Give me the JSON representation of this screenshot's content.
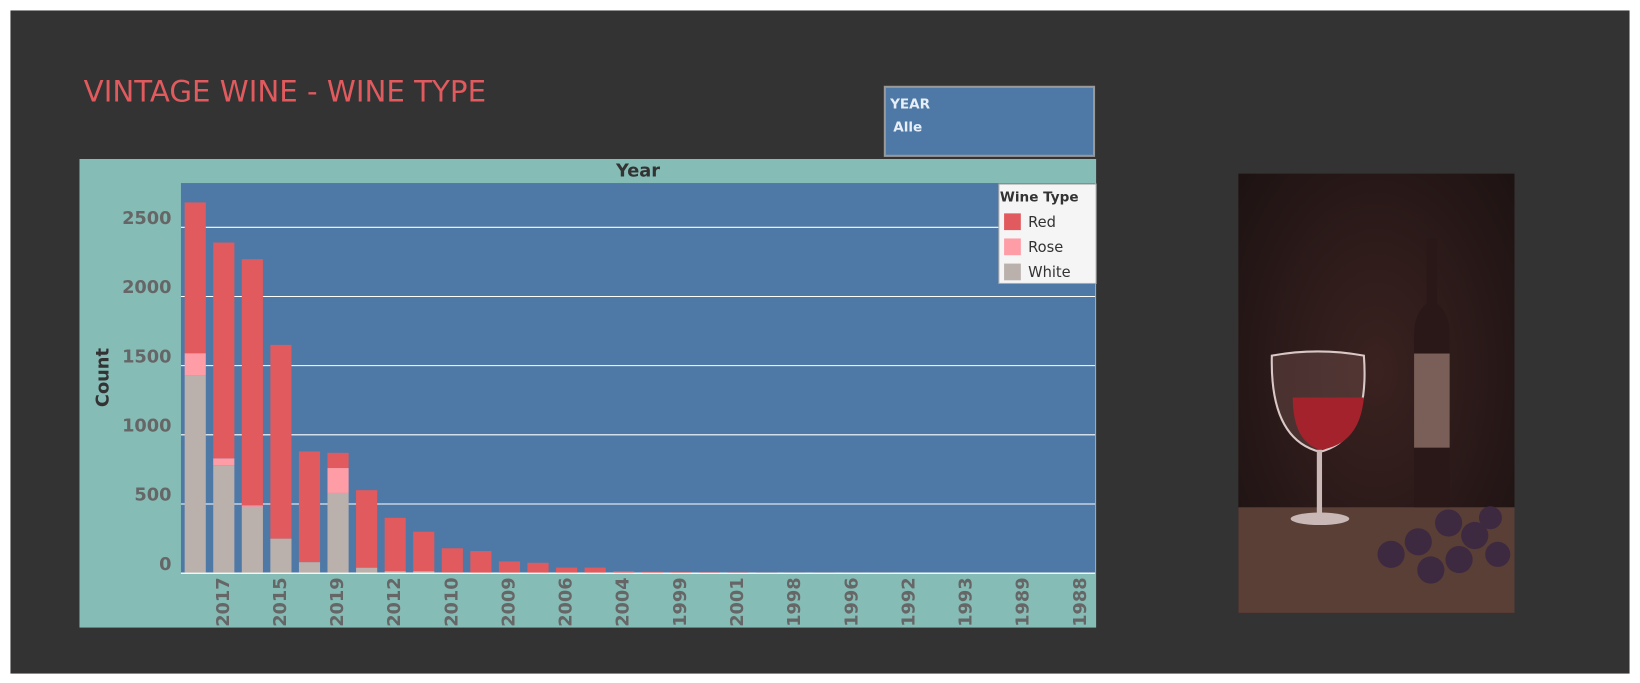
{
  "dashboard_title": "VINTAGE WINE - WINE TYPE",
  "filter": {
    "label": "YEAR",
    "value": "Alle"
  },
  "chart_data": {
    "type": "bar",
    "stacked": true,
    "x_label": "Year",
    "y_label": "Count",
    "categories": [
      null,
      "2017",
      null,
      "2015",
      null,
      "2019",
      null,
      "2012",
      null,
      "2010",
      null,
      "2009",
      null,
      "2006",
      null,
      "2004",
      null,
      "1999",
      null,
      "2001",
      null,
      "1998",
      null,
      "1996",
      null,
      "1992",
      null,
      "1993",
      null,
      "1989",
      null,
      "1988"
    ],
    "series": [
      {
        "name": "Red",
        "color": "#e05a5e",
        "values": [
          1090,
          1560,
          1780,
          1400,
          800,
          110,
          560,
          385,
          285,
          175,
          160,
          85,
          75,
          40,
          40,
          15,
          10,
          8,
          7,
          6,
          4,
          3,
          3,
          2,
          2,
          1,
          1,
          1,
          1,
          1,
          1,
          1
        ]
      },
      {
        "name": "Rose",
        "color": "#ff9da7",
        "values": [
          160,
          50,
          10,
          0,
          0,
          180,
          0,
          0,
          0,
          0,
          0,
          0,
          0,
          0,
          0,
          0,
          0,
          0,
          0,
          0,
          0,
          0,
          0,
          0,
          0,
          0,
          0,
          0,
          0,
          0,
          0,
          0
        ]
      },
      {
        "name": "White",
        "color": "#bab0ac",
        "values": [
          1430,
          780,
          480,
          250,
          80,
          580,
          40,
          15,
          15,
          5,
          0,
          0,
          0,
          0,
          0,
          0,
          0,
          0,
          0,
          0,
          0,
          0,
          0,
          0,
          0,
          0,
          0,
          0,
          0,
          0,
          0,
          0
        ]
      }
    ],
    "ylim": [
      0,
      2820
    ],
    "yticks": [
      0,
      500,
      1000,
      1500,
      2000,
      2500
    ],
    "grid": true,
    "legend_title": "Wine Type",
    "legend": "upper right"
  }
}
